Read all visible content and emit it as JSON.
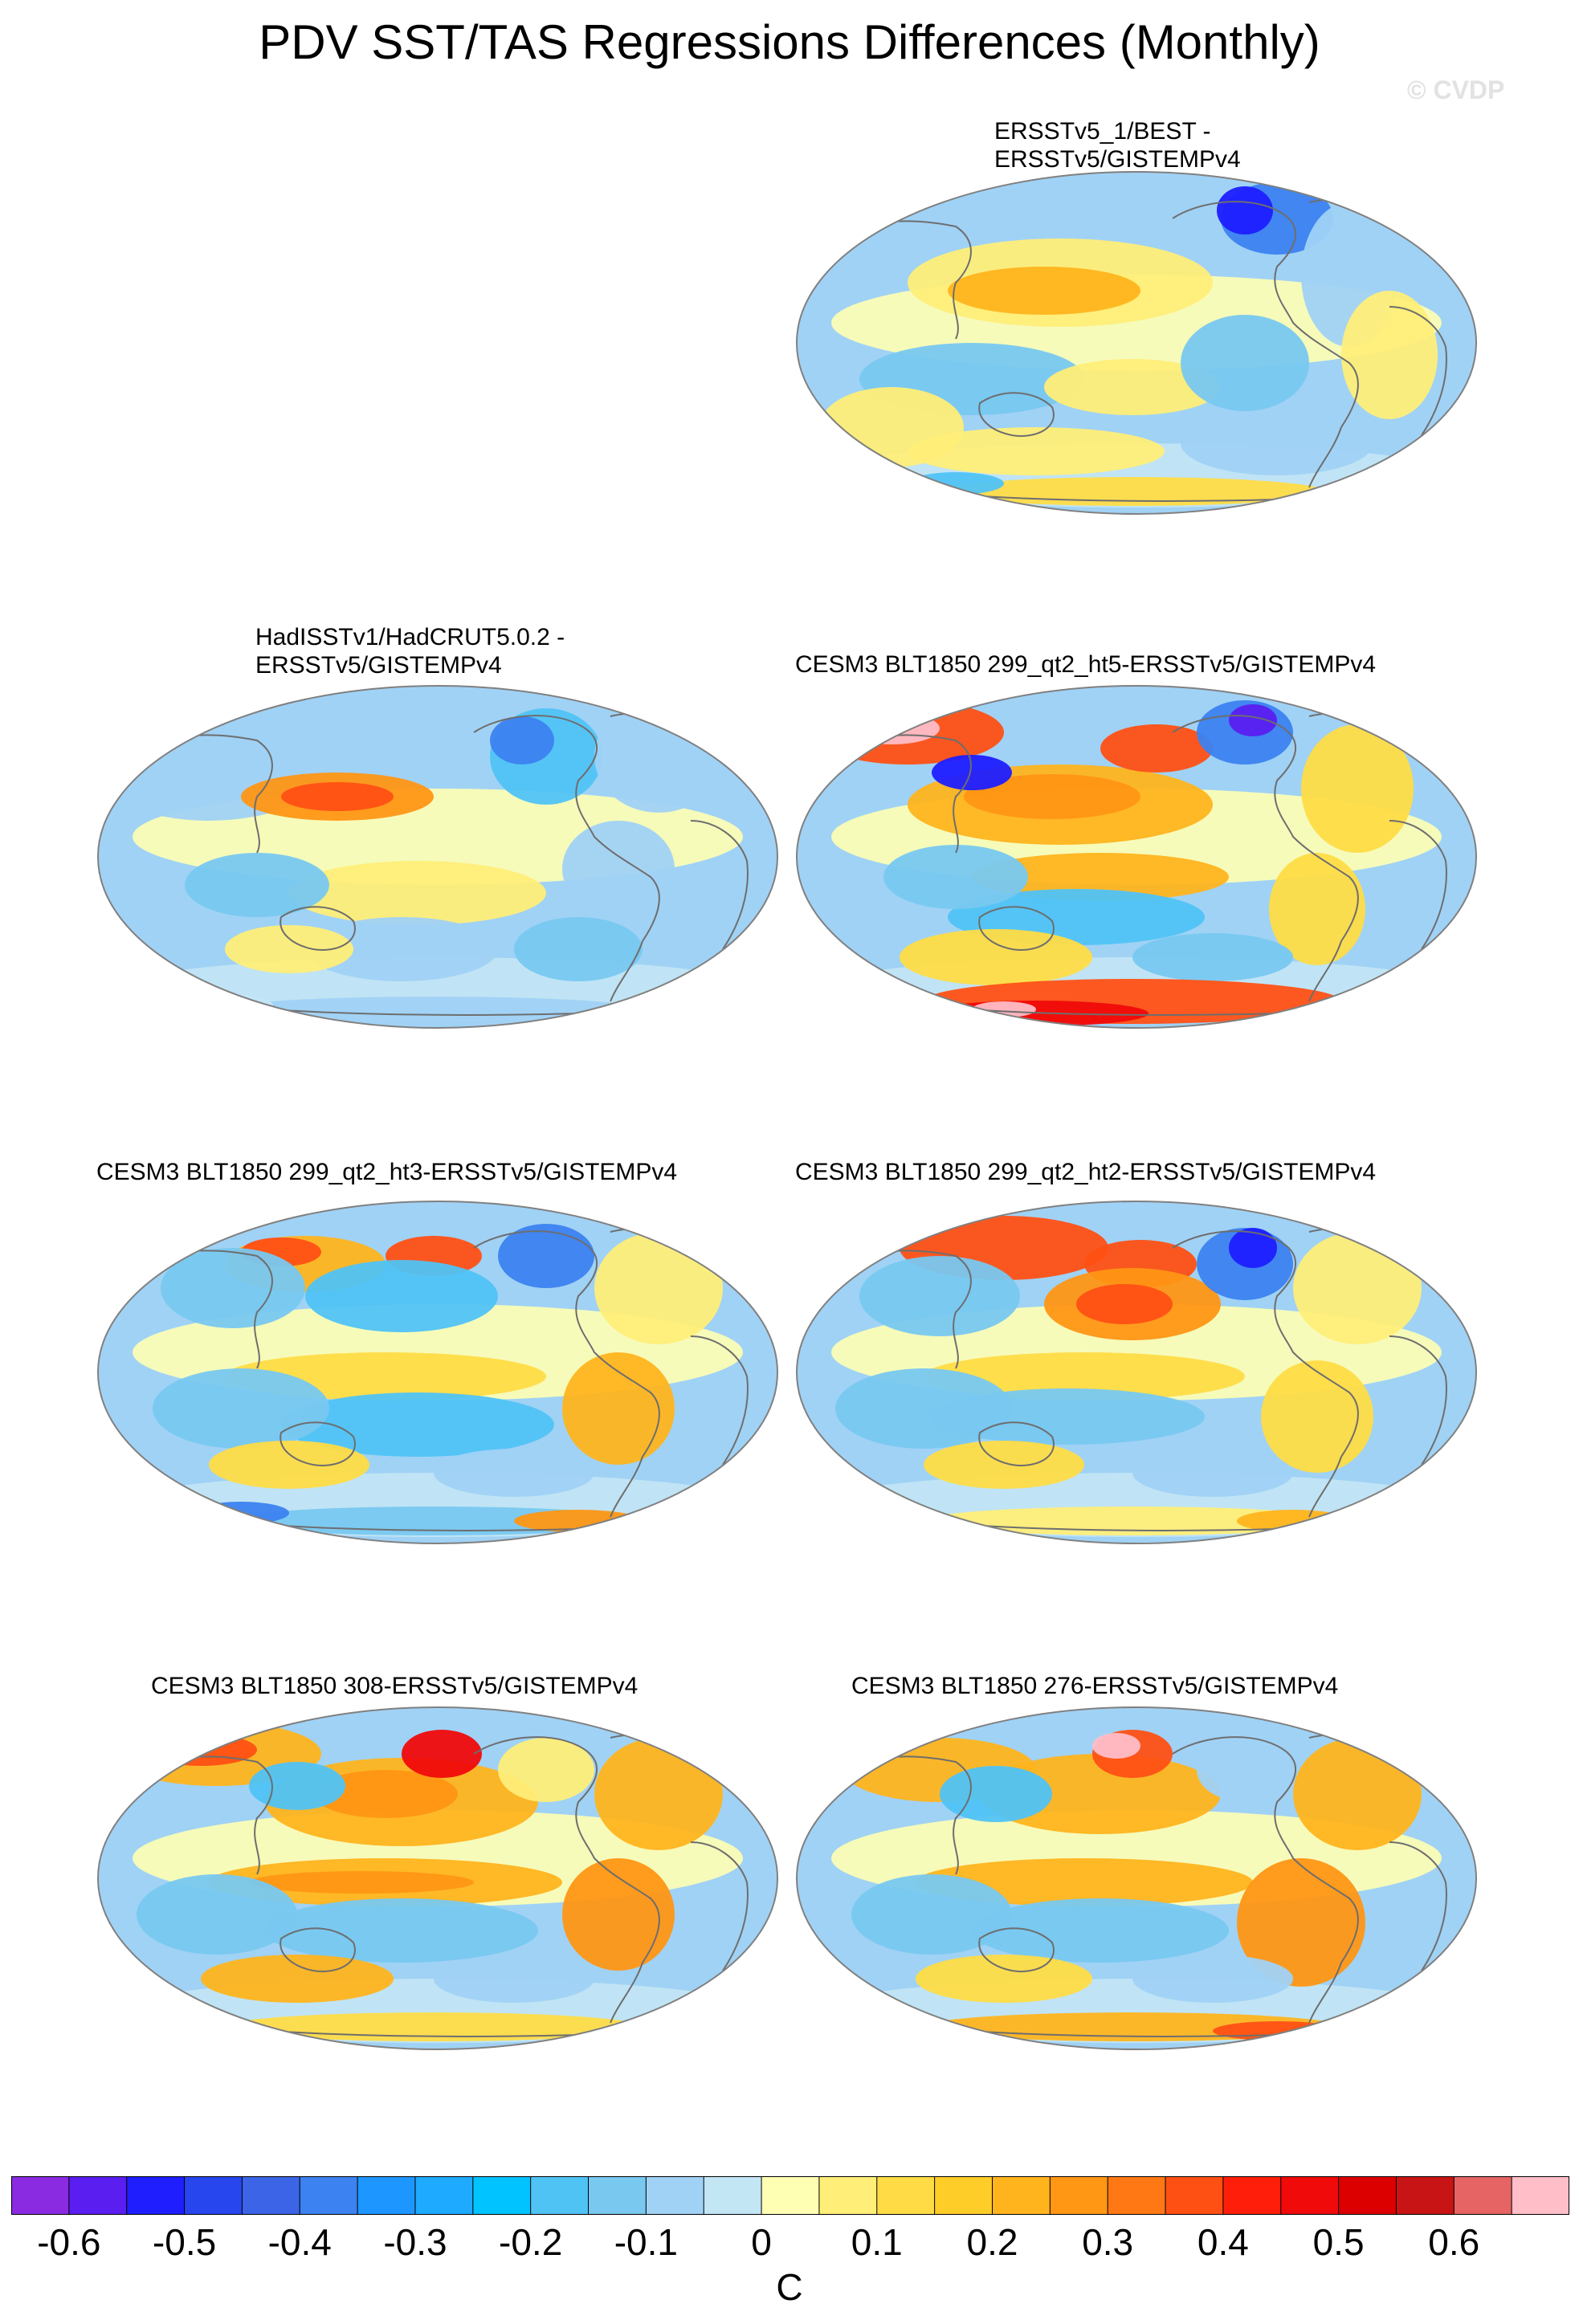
{
  "title": "PDV SST/TAS Regressions Differences (Monthly)",
  "watermark": "© CVDP",
  "panels": [
    {
      "label": "ERSSTv5_1/BEST -\nERSSTv5/GISTEMPv4",
      "scheme": "obs1"
    },
    {
      "label": "HadISSTv1/HadCRUT5.0.2 -\nERSSTv5/GISTEMPv4",
      "scheme": "obs2"
    },
    {
      "label": "CESM3 BLT1850 299_qt2_ht5-ERSSTv5/GISTEMPv4",
      "scheme": "ht5"
    },
    {
      "label": "CESM3 BLT1850 299_qt2_ht3-ERSSTv5/GISTEMPv4",
      "scheme": "ht3"
    },
    {
      "label": "CESM3 BLT1850 299_qt2_ht2-ERSSTv5/GISTEMPv4",
      "scheme": "ht2"
    },
    {
      "label": "CESM3 BLT1850 308-ERSSTv5/GISTEMPv4",
      "scheme": "m308"
    },
    {
      "label": "CESM3 BLT1850 276-ERSSTv5/GISTEMPv4",
      "scheme": "m276"
    }
  ],
  "colorbar": {
    "unit": "C",
    "ticks": [
      "-0.6",
      "-0.5",
      "-0.4",
      "-0.3",
      "-0.2",
      "-0.1",
      "0",
      "0.1",
      "0.2",
      "0.3",
      "0.4",
      "0.5",
      "0.6"
    ],
    "colors": [
      "#8a2be2",
      "#5a1ef0",
      "#1e1eff",
      "#2846ee",
      "#3c64e6",
      "#3c82f0",
      "#1e96ff",
      "#1eaaff",
      "#00c3ff",
      "#50c3f5",
      "#78c8f0",
      "#a0d2f5",
      "#c3e6f5",
      "#ffffb4",
      "#ffee78",
      "#ffdc46",
      "#ffcd28",
      "#ffb41e",
      "#ff9614",
      "#ff7814",
      "#ff5014",
      "#ff1e0a",
      "#f00a0a",
      "#dc0000",
      "#c81414",
      "#e66464",
      "#ffbec8"
    ]
  }
}
